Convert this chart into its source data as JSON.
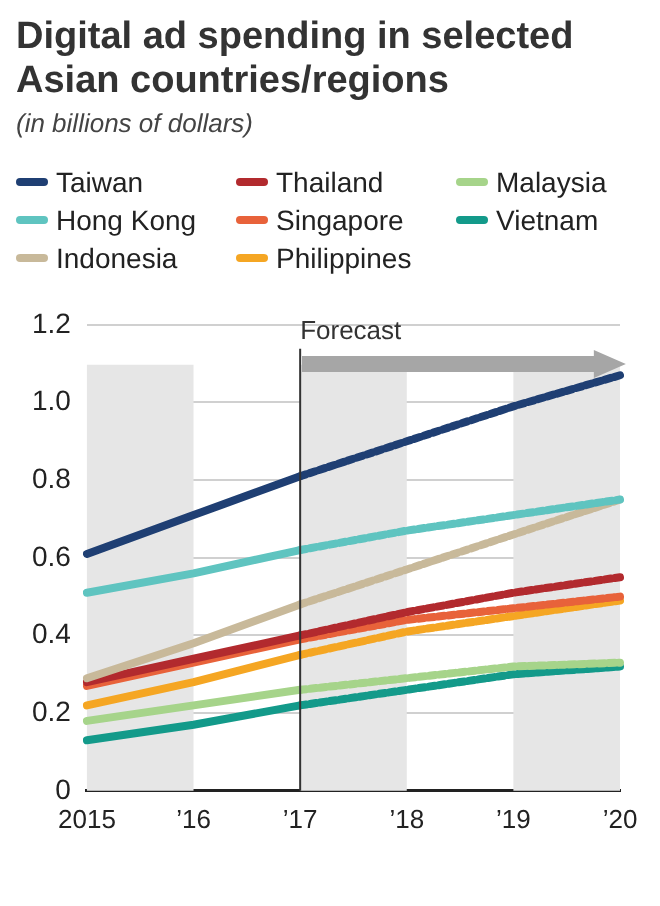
{
  "chart_data": {
    "type": "line",
    "title": "Digital ad spending in selected Asian countries/regions",
    "subtitle": "(in billions of dollars)",
    "categories": [
      "2015",
      "’16",
      "’17",
      "’18",
      "’19",
      "’20"
    ],
    "series": [
      {
        "name": "Taiwan",
        "color": "#1f3f73",
        "values": [
          0.61,
          0.71,
          0.81,
          0.9,
          0.99,
          1.07
        ]
      },
      {
        "name": "Hong Kong",
        "color": "#5fc4c0",
        "values": [
          0.51,
          0.56,
          0.62,
          0.67,
          0.71,
          0.75
        ]
      },
      {
        "name": "Indonesia",
        "color": "#c8b99a",
        "values": [
          0.29,
          0.38,
          0.48,
          0.57,
          0.66,
          0.75
        ]
      },
      {
        "name": "Thailand",
        "color": "#b22a2e",
        "values": [
          0.28,
          0.34,
          0.4,
          0.46,
          0.51,
          0.55
        ]
      },
      {
        "name": "Singapore",
        "color": "#e8623a",
        "values": [
          0.27,
          0.33,
          0.39,
          0.44,
          0.47,
          0.5
        ]
      },
      {
        "name": "Philippines",
        "color": "#f5a623",
        "values": [
          0.22,
          0.28,
          0.35,
          0.41,
          0.45,
          0.49
        ]
      },
      {
        "name": "Malaysia",
        "color": "#a6d48a",
        "values": [
          0.18,
          0.22,
          0.26,
          0.29,
          0.32,
          0.33
        ]
      },
      {
        "name": "Vietnam",
        "color": "#139a8a",
        "values": [
          0.13,
          0.17,
          0.22,
          0.26,
          0.3,
          0.32
        ]
      }
    ],
    "ylim": [
      0,
      1.2
    ],
    "yticks": [
      0,
      0.2,
      0.4,
      0.6,
      0.8,
      {
        "value": 1,
        "label": "1.0"
      },
      1.2
    ],
    "grid": "y",
    "legend": "top left",
    "marker": "none",
    "line_style": "solid",
    "ref_lines": [
      {
        "axis": "x",
        "value": "’17",
        "label": "Forecast",
        "color": "#333333"
      }
    ],
    "bands": [
      {
        "axis": "x",
        "from": "2015",
        "to": "’16",
        "color": "#e6e6e6"
      },
      {
        "axis": "x",
        "from": "’17",
        "to": "’18",
        "color": "#e6e6e6"
      },
      {
        "axis": "x",
        "from": "’19",
        "to": "’20",
        "color": "#e6e6e6"
      }
    ]
  }
}
